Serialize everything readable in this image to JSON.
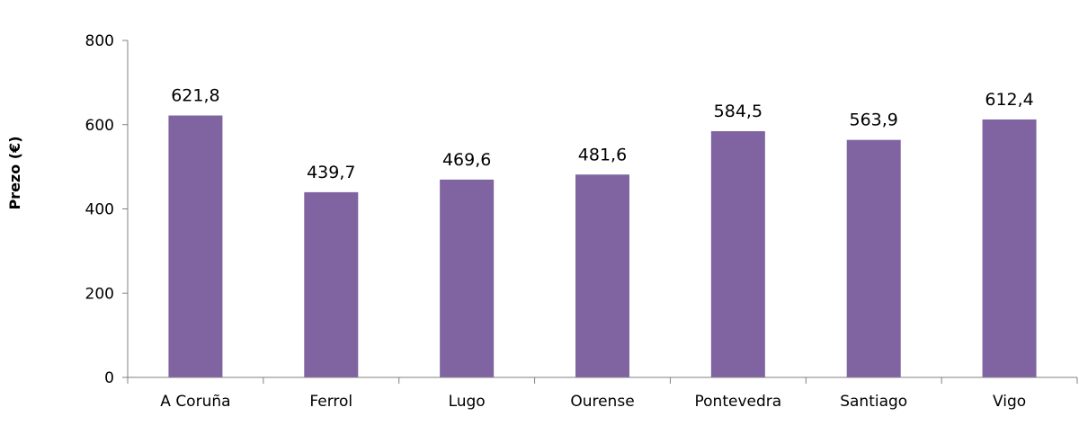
{
  "chart_data": {
    "type": "bar",
    "categories": [
      "A Coruña",
      "Ferrol",
      "Lugo",
      "Ourense",
      "Pontevedra",
      "Santiago",
      "Vigo"
    ],
    "values": [
      621.8,
      439.7,
      469.6,
      481.6,
      584.5,
      563.9,
      612.4
    ],
    "data_labels": [
      "621,8",
      "439,7",
      "469,6",
      "481,6",
      "584,5",
      "563,9",
      "612,4"
    ],
    "ylabel": "Prezo (€)",
    "xlabel": "",
    "title": "",
    "ylim": [
      0,
      800
    ],
    "yticks": [
      0,
      200,
      400,
      600,
      800
    ],
    "grid": false,
    "legend": "none",
    "bar_color": "#8064a2"
  }
}
